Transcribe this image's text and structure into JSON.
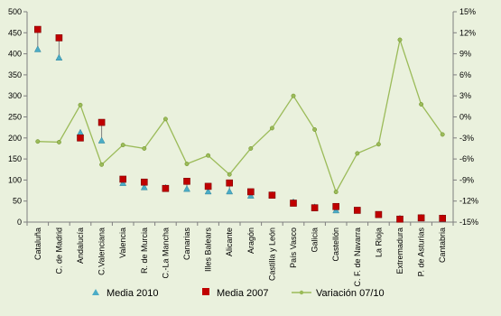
{
  "chart_data": {
    "type": "combo",
    "title": "",
    "xlabel": "",
    "ylabel": "",
    "y_left": {
      "range": [
        0,
        500
      ],
      "ticks": [
        0,
        50,
        100,
        150,
        200,
        250,
        300,
        350,
        400,
        450,
        500
      ]
    },
    "y_right": {
      "range": [
        -15,
        15
      ],
      "ticks": [
        -15,
        -12,
        -9,
        -6,
        -3,
        0,
        3,
        6,
        9,
        12,
        15
      ],
      "unit": "%"
    },
    "grid": false,
    "legend_position": "bottom",
    "categories": [
      "Cataluña",
      "C. de Madrid",
      "Andalucía",
      "C.Valenciana",
      "Valencia",
      "R. de Murcia",
      "C.-La Mancha",
      "Canarias",
      "Illes Balears",
      "Alicante",
      "Aragón",
      "Castilla y León",
      "País Vasco",
      "Galicia",
      "Castellón",
      "C. F. de Navarra",
      "La Rioja",
      "Extremadura",
      "P. de Asturias",
      "Cantabria"
    ],
    "series": [
      {
        "name": "Media 2010",
        "kind": "marker-triangle",
        "axis": "left",
        "color": "#4bacc6",
        "values": [
          410,
          390,
          212,
          193,
          92,
          82,
          81,
          78,
          72,
          72,
          62,
          64,
          47,
          35,
          27,
          27,
          17,
          8,
          10,
          9
        ]
      },
      {
        "name": "Media 2007",
        "kind": "marker-square",
        "axis": "left",
        "color": "#c00000",
        "values": [
          458,
          438,
          200,
          237,
          102,
          95,
          80,
          97,
          85,
          93,
          72,
          64,
          45,
          34,
          37,
          28,
          18,
          7,
          10,
          9
        ]
      },
      {
        "name": "Variación 07/10",
        "kind": "line",
        "axis": "right",
        "color": "#9bbb59",
        "values": [
          -3.5,
          -3.6,
          1.7,
          -6.8,
          -4.0,
          -4.5,
          -0.3,
          -6.7,
          -5.5,
          -8.2,
          -4.5,
          -1.6,
          3.0,
          -1.8,
          -10.7,
          -5.2,
          -3.9,
          11.0,
          1.8,
          -2.5
        ]
      }
    ]
  }
}
